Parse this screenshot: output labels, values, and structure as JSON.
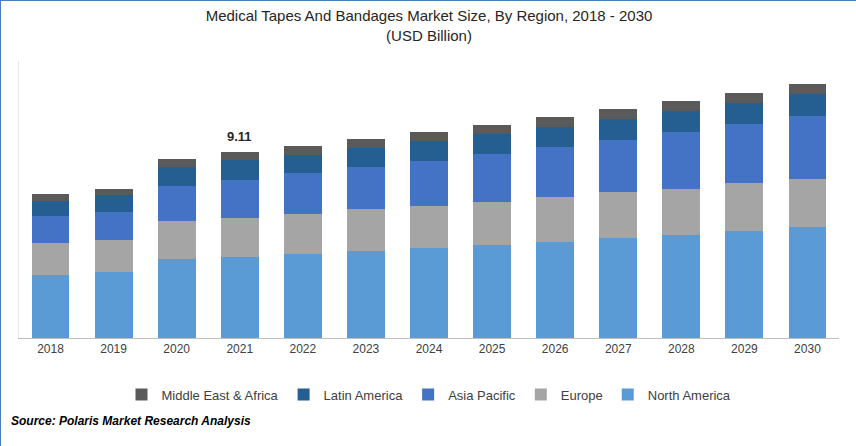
{
  "chart_data": {
    "type": "bar",
    "title": "Medical Tapes And Bandages Market Size, By Region, 2018 - 2030",
    "subtitle": "(USD Billion)",
    "source": "Source: Polaris Market Research Analysis",
    "categories": [
      "2018",
      "2019",
      "2020",
      "2021",
      "2022",
      "2023",
      "2024",
      "2025",
      "2026",
      "2027",
      "2028",
      "2029",
      "2030"
    ],
    "series": [
      {
        "name": "North America",
        "color": "#5b9bd5",
        "values": [
          3.1,
          3.25,
          3.89,
          3.99,
          4.14,
          4.29,
          4.43,
          4.58,
          4.73,
          4.93,
          5.07,
          5.27,
          5.47
        ]
      },
      {
        "name": "Europe",
        "color": "#a5a5a5",
        "values": [
          1.58,
          1.58,
          1.87,
          1.92,
          1.97,
          2.02,
          2.07,
          2.12,
          2.17,
          2.22,
          2.27,
          2.32,
          2.36
        ]
      },
      {
        "name": "Asia Pacific",
        "color": "#4472c4",
        "values": [
          1.33,
          1.38,
          1.72,
          1.87,
          1.97,
          2.07,
          2.17,
          2.32,
          2.46,
          2.56,
          2.76,
          2.91,
          3.05
        ]
      },
      {
        "name": "Latin America",
        "color": "#255e91",
        "values": [
          0.74,
          0.79,
          0.94,
          0.94,
          0.89,
          0.94,
          0.99,
          0.99,
          0.99,
          1.03,
          1.03,
          1.03,
          1.08
        ]
      },
      {
        "name": "Middle East & Africa",
        "color": "#5a5a5a",
        "values": [
          0.34,
          0.34,
          0.39,
          0.39,
          0.44,
          0.44,
          0.44,
          0.44,
          0.49,
          0.49,
          0.49,
          0.49,
          0.49
        ]
      }
    ],
    "annotations": [
      {
        "x": "2021",
        "text": "9.11"
      }
    ],
    "ylim": [
      0,
      13.6
    ],
    "stacked": true,
    "grid": false,
    "legend": "bottom",
    "tick_labels": "x"
  }
}
